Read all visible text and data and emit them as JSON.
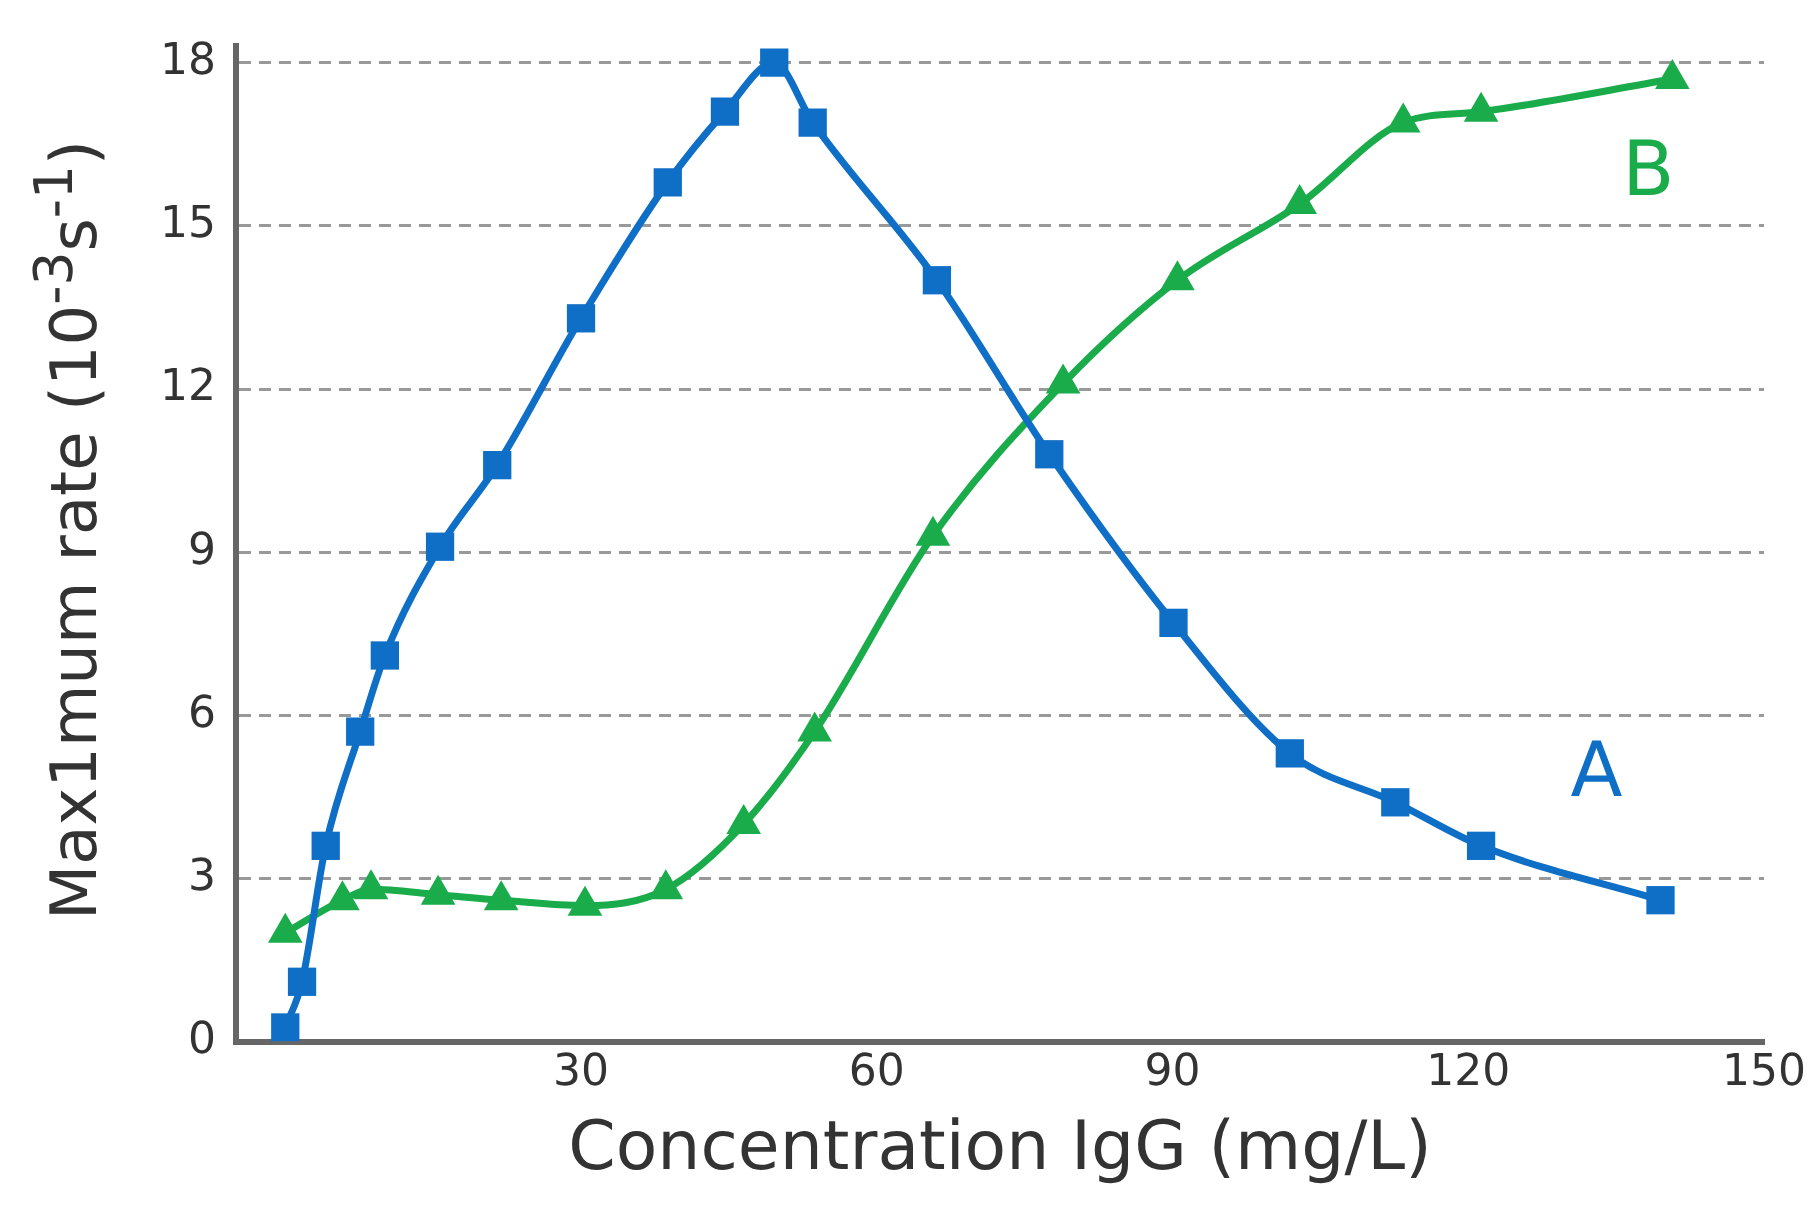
{
  "chart_data": {
    "type": "line",
    "xlabel": "Concentration IgG (mg/L)",
    "ylabel": "Max1mum rate (10$^{-3}$s$^{-1}$)",
    "xlim": [
      -5,
      150
    ],
    "xticks": [
      30,
      60,
      90,
      120,
      150
    ],
    "ylim": [
      0,
      18.3
    ],
    "yticks": [
      0,
      3,
      6,
      9,
      12,
      15,
      18
    ],
    "grid": "y",
    "legend": false,
    "series": [
      {
        "name": "A",
        "color": "#0f6fc6",
        "marker": "square",
        "x": [
          0,
          1.7,
          4.1,
          7.6,
          10.1,
          15.7,
          21.5,
          30,
          38.8,
          44.6,
          49.6,
          53.5,
          66.1,
          77.5,
          90.1,
          101.9,
          112.6,
          121.3,
          139.5
        ],
        "values": [
          0.26,
          1.1,
          3.6,
          5.7,
          7.1,
          9.1,
          10.6,
          13.3,
          15.8,
          17.1,
          18.0,
          16.9,
          14.0,
          10.8,
          7.7,
          5.3,
          4.4,
          3.6,
          2.6
        ]
      },
      {
        "name": "B",
        "color": "#1aab4b",
        "marker": "triangle",
        "x": [
          0,
          5.8,
          8.7,
          15.5,
          21.9,
          30.4,
          38.6,
          46.5,
          53.7,
          65.7,
          78.9,
          90.5,
          102.9,
          113.4,
          121.3,
          140.7
        ],
        "values": [
          2.0,
          2.6,
          2.8,
          2.7,
          2.6,
          2.5,
          2.8,
          4.0,
          5.7,
          9.3,
          12.1,
          14.0,
          15.4,
          16.9,
          17.1,
          17.7
        ]
      }
    ]
  }
}
